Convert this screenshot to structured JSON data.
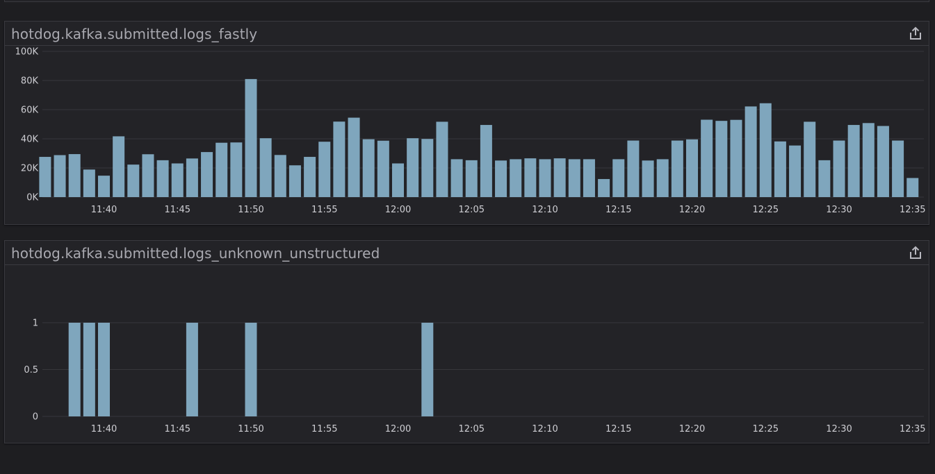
{
  "colors": {
    "background": "#1e1e21",
    "panel": "#232327",
    "bar": "#7fa6bd",
    "grid": "#37373c"
  },
  "panels": [
    {
      "title": "hotdog.kafka.submitted.logs_fastly",
      "share_icon": "share-icon"
    },
    {
      "title": "hotdog.kafka.submitted.logs_unknown_unstructured",
      "share_icon": "share-icon"
    }
  ],
  "chart_data": [
    {
      "type": "bar",
      "title": "hotdog.kafka.submitted.logs_fastly",
      "xlabel": "",
      "ylabel": "",
      "x_tick_labels": [
        "11:40",
        "11:45",
        "11:50",
        "11:55",
        "12:00",
        "12:05",
        "12:10",
        "12:15",
        "12:20",
        "12:25",
        "12:30",
        "12:35"
      ],
      "y_tick_labels": [
        "0K",
        "20K",
        "40K",
        "60K",
        "80K",
        "100K"
      ],
      "ylim": [
        0,
        100000
      ],
      "grid": true,
      "x_start": "11:36",
      "bar_interval_minutes": 1,
      "values": [
        27600,
        28800,
        29500,
        18900,
        14700,
        41700,
        22300,
        29400,
        25300,
        23100,
        26500,
        30900,
        37300,
        37500,
        81000,
        40400,
        28900,
        21800,
        27600,
        38000,
        51800,
        54500,
        39700,
        38700,
        23100,
        40400,
        39900,
        51700,
        26000,
        25300,
        49500,
        25100,
        26000,
        26600,
        26000,
        26600,
        26000,
        26000,
        12400,
        26000,
        38800,
        25100,
        26000,
        38800,
        39600,
        53100,
        52300,
        53000,
        62200,
        64400,
        38200,
        35400,
        51700,
        25300,
        38800,
        49500,
        50800,
        48800,
        38800,
        13100
      ]
    },
    {
      "type": "bar",
      "title": "hotdog.kafka.submitted.logs_unknown_unstructured",
      "xlabel": "",
      "ylabel": "",
      "x_tick_labels": [
        "11:40",
        "11:45",
        "11:50",
        "11:55",
        "12:00",
        "12:05",
        "12:10",
        "12:15",
        "12:20",
        "12:25",
        "12:30",
        "12:35"
      ],
      "y_tick_labels": [
        "0",
        "0.5",
        "1"
      ],
      "ylim": [
        0,
        1.2
      ],
      "grid": true,
      "x_start": "11:36",
      "bar_interval_minutes": 1,
      "points": [
        {
          "x": "11:38",
          "value": 1
        },
        {
          "x": "11:39",
          "value": 1
        },
        {
          "x": "11:40",
          "value": 1
        },
        {
          "x": "11:46",
          "value": 1
        },
        {
          "x": "11:50",
          "value": 1
        },
        {
          "x": "12:02",
          "value": 1
        }
      ]
    }
  ]
}
